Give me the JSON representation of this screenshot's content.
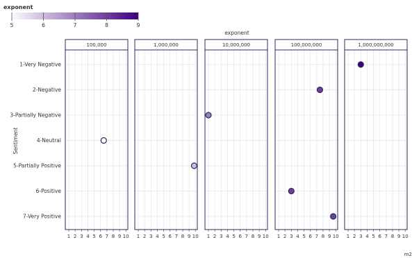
{
  "chart_data": {
    "type": "scatter",
    "title": "",
    "legend": {
      "title": "exponent",
      "ticks": [
        "5",
        "6",
        "7",
        "8",
        "9"
      ],
      "range": [
        5,
        9
      ],
      "color_low": "#fcfbfd",
      "color_high": "#3f007d",
      "placement": "top-left"
    },
    "facet_title": "exponent",
    "facets": [
      "100,000",
      "1,000,000",
      "10,000,000",
      "100,000,000",
      "1,000,000,000"
    ],
    "facet_exponents": [
      5,
      6,
      7,
      8,
      9
    ],
    "ylabel": "Sentiment",
    "xlabel": "m2",
    "categories": [
      "1-Very Negative",
      "2-Negative",
      "3-Partially Negative",
      "4-Neutral",
      "5-Partially Positive",
      "6-Positive",
      "7-Very Positive"
    ],
    "x_ticks": [
      "1",
      "2",
      "3",
      "4",
      "5",
      "6",
      "7",
      "8",
      "9",
      "10"
    ],
    "xlim": [
      0.45,
      10.3
    ],
    "points": [
      {
        "facet": 4,
        "category": "1-Very Negative",
        "x": 3.0,
        "exponent": 9
      },
      {
        "facet": 3,
        "category": "2-Negative",
        "x": 7.5,
        "exponent": 8
      },
      {
        "facet": 2,
        "category": "3-Partially Negative",
        "x": 1.0,
        "exponent": 7
      },
      {
        "facet": 0,
        "category": "4-Neutral",
        "x": 6.5,
        "exponent": 5
      },
      {
        "facet": 1,
        "category": "5-Partially Positive",
        "x": 9.8,
        "exponent": 6
      },
      {
        "facet": 3,
        "category": "6-Positive",
        "x": 3.0,
        "exponent": 8
      },
      {
        "facet": 3,
        "category": "7-Very Positive",
        "x": 9.6,
        "exponent": 8
      }
    ]
  }
}
